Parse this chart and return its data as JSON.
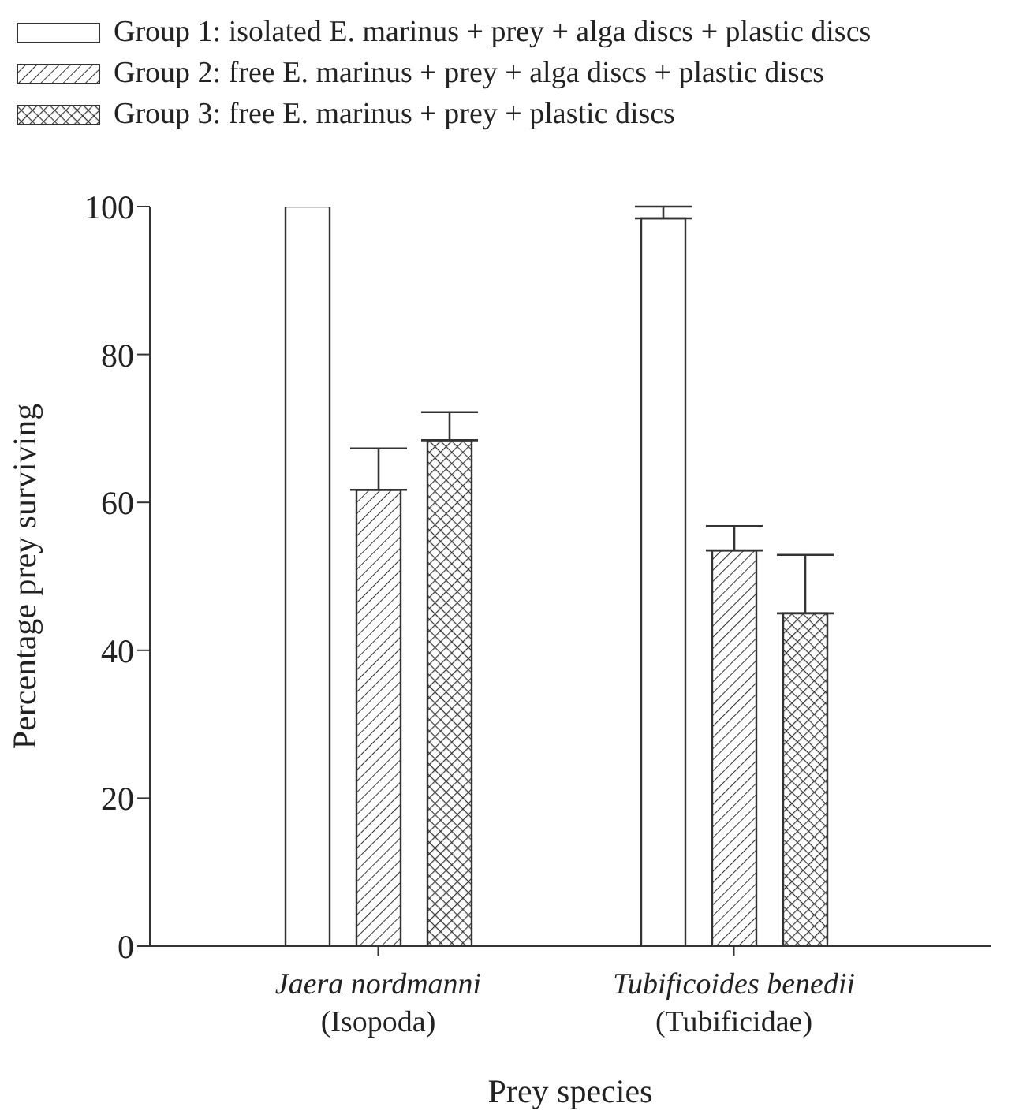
{
  "chart_data": {
    "type": "bar",
    "xlabel": "Prey species",
    "ylabel": "Percentage prey surviving",
    "categories": [
      "Jaera nordmanni\n(Isopoda)",
      "Tubificoides benedii\n(Tubificidae)"
    ],
    "series": [
      {
        "name": "Group 1: isolated E. marinus + prey + alga discs + plastic discs",
        "color": "#ffffff",
        "values": [
          100,
          98.4
        ],
        "errors": [
          null,
          [
            98.4,
            100
          ]
        ]
      },
      {
        "name": "Group 2: free E. marinus + prey + alga discs + plastic discs",
        "color": "#333333",
        "values": [
          61.7,
          53.5
        ],
        "errors": [
          [
            61.7,
            67.3
          ],
          [
            53.5,
            56.8
          ]
        ]
      },
      {
        "name": "Group 3: free E. marinus + prey + plastic discs",
        "color": "#333333",
        "values": [
          68.4,
          45.0
        ],
        "errors": [
          [
            68.4,
            72.2
          ],
          [
            45.0,
            52.9
          ]
        ]
      }
    ],
    "ylim": [
      0,
      100
    ],
    "yticks": [
      0,
      20,
      40,
      60,
      80,
      100
    ],
    "grid": false,
    "legend": "top left"
  }
}
